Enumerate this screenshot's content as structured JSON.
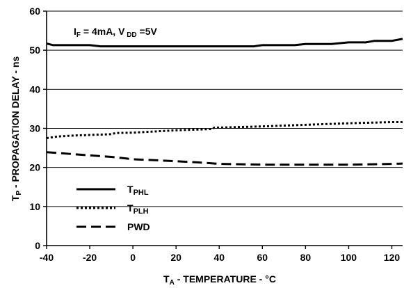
{
  "chart_data": {
    "type": "line",
    "title": "",
    "xlabel": {
      "main": "T",
      "sub": "A",
      "rest": " - TEMPERATURE - °C"
    },
    "ylabel": {
      "main": "T",
      "sub": "P",
      "rest": " - PROPAGATION DELAY - ns"
    },
    "xlim": [
      -40,
      125
    ],
    "ylim": [
      0,
      60
    ],
    "xticks": [
      -40,
      -20,
      0,
      20,
      40,
      60,
      80,
      100,
      120
    ],
    "xtick_labels": [
      "-40",
      "-20",
      "0",
      "20",
      "40",
      "60",
      "80",
      "100",
      "120"
    ],
    "yticks": [
      0,
      10,
      20,
      30,
      40,
      50,
      60
    ],
    "ytick_labels": [
      "0",
      "10",
      "20",
      "30",
      "40",
      "50",
      "60"
    ],
    "grid": "horizontal",
    "annotation": {
      "parts": [
        {
          "text": "I",
          "sub": false
        },
        {
          "text": "F",
          "sub": true
        },
        {
          "text": " = 4mA, V",
          "sub": false
        },
        {
          "text": " DD",
          "sub": true
        },
        {
          "text": " =5V",
          "sub": false
        }
      ]
    },
    "legend_position": "bottom-left",
    "series": [
      {
        "name": "TPHL",
        "name_main": "T",
        "name_sub": "PHL",
        "style": "solid",
        "x": [
          -40,
          -37,
          -20,
          -15,
          0,
          20,
          40,
          56,
          60,
          75,
          80,
          92,
          100,
          108,
          112,
          120,
          125
        ],
        "y": [
          51.7,
          51.3,
          51.3,
          51.0,
          51.0,
          51.0,
          51.0,
          51.0,
          51.3,
          51.3,
          51.6,
          51.6,
          52.0,
          52.0,
          52.4,
          52.4,
          52.9
        ]
      },
      {
        "name": "TPLH",
        "name_main": "T",
        "name_sub": "PLH",
        "style": "dotted",
        "x": [
          -40,
          -35,
          -30,
          -20,
          -10,
          -8,
          0,
          10,
          20,
          36,
          38,
          40,
          60,
          80,
          100,
          120,
          125
        ],
        "y": [
          27.5,
          27.9,
          28.1,
          28.3,
          28.5,
          28.8,
          28.9,
          29.2,
          29.5,
          29.8,
          30.2,
          30.2,
          30.5,
          30.9,
          31.3,
          31.6,
          31.6
        ]
      },
      {
        "name": "PWD",
        "name_main": "PWD",
        "name_sub": "",
        "style": "dashed",
        "x": [
          -40,
          -35,
          -20,
          -10,
          0,
          20,
          30,
          38,
          40,
          60,
          80,
          100,
          120,
          125
        ],
        "y": [
          23.9,
          23.7,
          23.1,
          22.7,
          22.1,
          21.6,
          21.3,
          21.0,
          20.9,
          20.7,
          20.7,
          20.7,
          20.9,
          21.0
        ]
      }
    ]
  }
}
